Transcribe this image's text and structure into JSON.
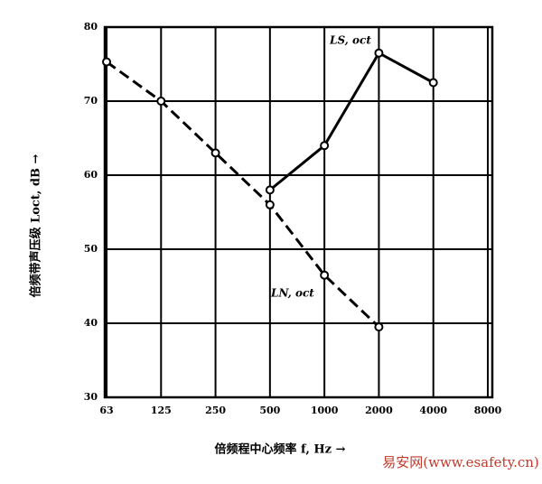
{
  "chart_data": {
    "type": "line",
    "categories": [
      "63",
      "125",
      "250",
      "500",
      "1000",
      "2000",
      "4000",
      "8000"
    ],
    "series": [
      {
        "name": "LS, oct",
        "color": "#000000",
        "dashed": false,
        "values": [
          null,
          null,
          null,
          58,
          64,
          76.5,
          72.5,
          null
        ]
      },
      {
        "name": "LN, oct",
        "color": "#000000",
        "dashed": true,
        "values": [
          75.3,
          70,
          63,
          56,
          46.5,
          39.5,
          null,
          null
        ]
      }
    ],
    "ylim": [
      30,
      80
    ],
    "yticks": [
      30,
      40,
      50,
      60,
      70,
      80
    ],
    "grid": true,
    "y_label": "倍频带声压级 Loct, dB →",
    "x_label": "倍频程中心频率 f, Hz →",
    "watermark": "易安网(www.esafety.cn)"
  }
}
